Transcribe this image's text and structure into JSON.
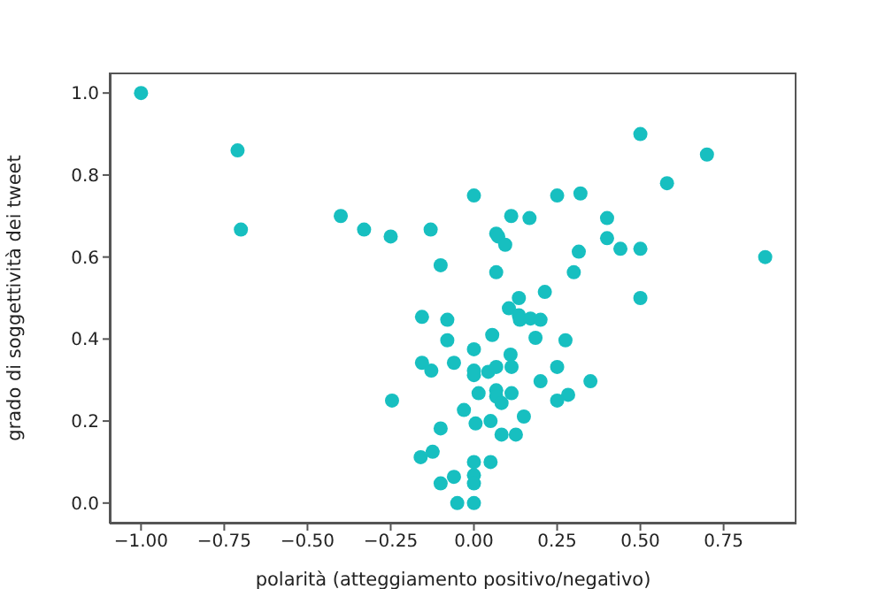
{
  "chart_data": {
    "type": "scatter",
    "xlabel": "polarità (atteggiamento positivo/negativo)",
    "ylabel": "grado di soggettività dei tweet",
    "marker": "circle",
    "xlim": [
      -1.094,
      0.969
    ],
    "ylim": [
      -0.05,
      1.05
    ],
    "xticks": [
      {
        "value": -1,
        "label": "−1.00"
      },
      {
        "value": -0.75,
        "label": "−0.75"
      },
      {
        "value": -0.5,
        "label": "−0.50"
      },
      {
        "value": -0.25,
        "label": "−0.25"
      },
      {
        "value": 0,
        "label": "0.00"
      },
      {
        "value": 0.25,
        "label": "0.25"
      },
      {
        "value": 0.5,
        "label": "0.50"
      },
      {
        "value": 0.75,
        "label": "0.75"
      }
    ],
    "yticks": [
      {
        "value": 0,
        "label": "0.0"
      },
      {
        "value": 0.2,
        "label": "0.2"
      },
      {
        "value": 0.4,
        "label": "0.4"
      },
      {
        "value": 0.6,
        "label": "0.6"
      },
      {
        "value": 0.8,
        "label": "0.8"
      },
      {
        "value": 1,
        "label": "1.0"
      }
    ],
    "series": [
      {
        "color": "#17bfc0",
        "x": [
          -1,
          -0.71,
          -0.7,
          -0.4,
          -0.33,
          -0.25,
          -0.13,
          -0.1,
          0,
          0.067,
          0.073,
          0.094,
          0.112,
          0.167,
          0.067,
          0.135,
          0.213,
          0.25,
          0.32,
          0.315,
          0.3,
          0.4,
          0.4,
          0.44,
          0.5,
          0.5,
          0.58,
          0.7,
          0.875,
          0.5,
          -0.156,
          -0.08,
          0.105,
          0.135,
          0.138,
          0.17,
          0.2,
          -0.08,
          0.055,
          0.185,
          0.275,
          0,
          -0.156,
          -0.128,
          -0.06,
          0,
          0,
          0.043,
          0.067,
          0.11,
          0.113,
          0.25,
          0.2,
          0.35,
          0.283,
          0.25,
          0.014,
          0.067,
          0.067,
          0.083,
          0.113,
          0.15,
          -0.03,
          0.005,
          0.05,
          0.083,
          0.126,
          -0.1,
          -0.246,
          -0.16,
          -0.124,
          0,
          0.05,
          -0.06,
          -0.1,
          0,
          0,
          -0.05,
          0
        ],
        "values": [
          1,
          0.86,
          0.667,
          0.7,
          0.667,
          0.65,
          0.667,
          0.58,
          0.75,
          0.657,
          0.65,
          0.63,
          0.7,
          0.695,
          0.563,
          0.5,
          0.515,
          0.75,
          0.755,
          0.613,
          0.563,
          0.695,
          0.646,
          0.62,
          0.62,
          0.9,
          0.78,
          0.85,
          0.6,
          0.5,
          0.454,
          0.447,
          0.475,
          0.458,
          0.447,
          0.45,
          0.447,
          0.397,
          0.41,
          0.403,
          0.397,
          0.375,
          0.342,
          0.323,
          0.342,
          0.323,
          0.312,
          0.32,
          0.332,
          0.362,
          0.332,
          0.332,
          0.297,
          0.297,
          0.264,
          0.25,
          0.268,
          0.275,
          0.26,
          0.244,
          0.268,
          0.211,
          0.227,
          0.194,
          0.2,
          0.167,
          0.167,
          0.182,
          0.25,
          0.112,
          0.125,
          0.1,
          0.1,
          0.064,
          0.048,
          0.068,
          0.048,
          0,
          0
        ]
      }
    ]
  }
}
